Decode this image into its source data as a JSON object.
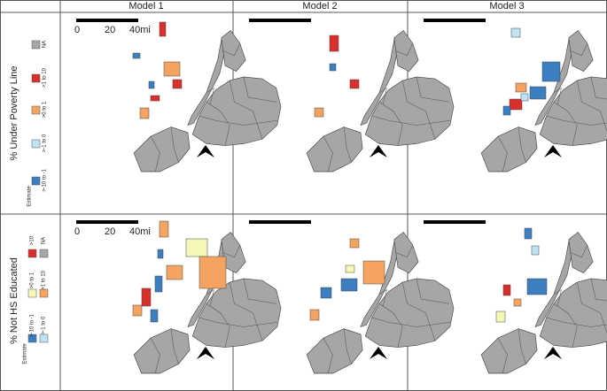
{
  "header": {
    "columns": [
      "Model 1",
      "Model 2",
      "Model 3"
    ]
  },
  "rows": [
    {
      "title": "% Under Poverty Line",
      "legend": [
        "NA",
        ">1 to 10",
        ">0 to 1",
        ">-1 to 0",
        ">-10 to -1"
      ],
      "legend_heading": "Estimate"
    },
    {
      "title": "% Not HS Educated",
      "legend": [
        ">10",
        "NA",
        ">0 to 1",
        ">1 to 10",
        ">-10 to -1",
        ">-1 to 0"
      ],
      "legend_heading": "Estimate"
    }
  ],
  "scale_labels": [
    "0",
    "20",
    "40mi"
  ]
}
